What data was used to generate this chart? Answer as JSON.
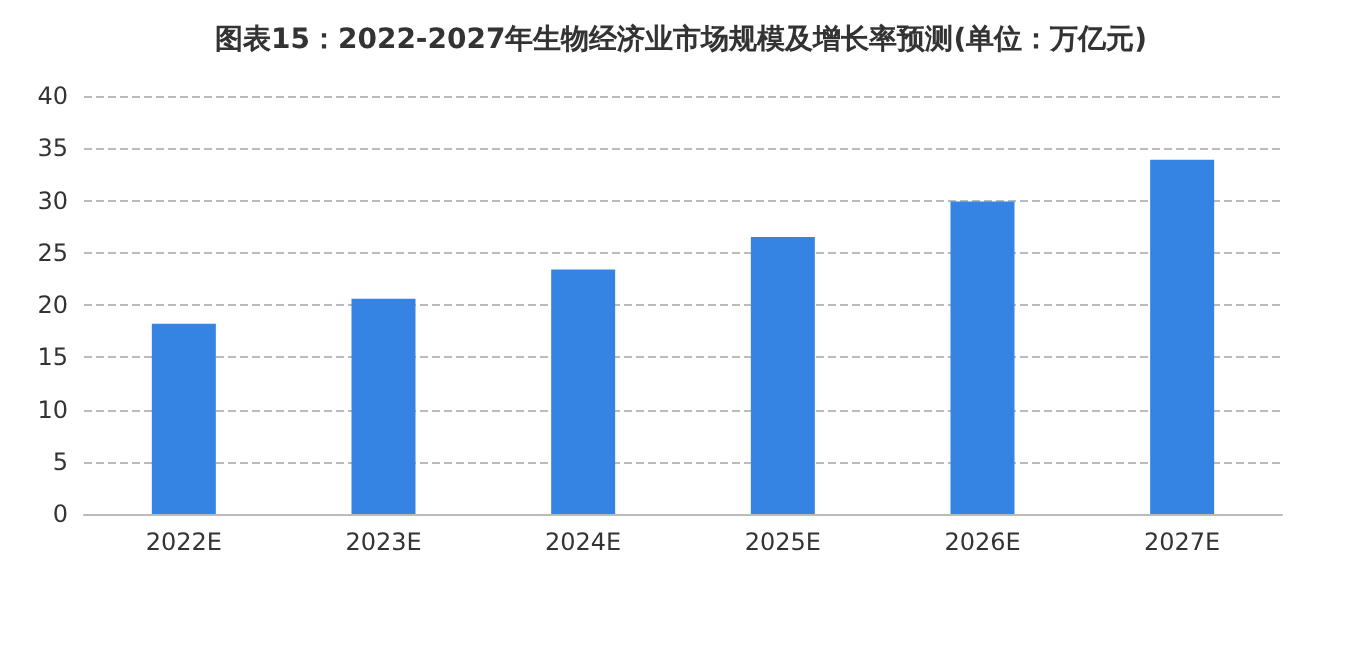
{
  "chart_data": {
    "type": "bar",
    "title": "图表15：2022-2027年生物经济业市场规模及增长率预测(单位：万亿元)",
    "categories": [
      "2022E",
      "2023E",
      "2024E",
      "2025E",
      "2026E",
      "2027E"
    ],
    "values": [
      18.2,
      20.6,
      23.4,
      26.5,
      29.9,
      33.9
    ],
    "color": "#3584e4",
    "ylim": [
      0,
      40
    ],
    "yticks": [
      0,
      5,
      10,
      15,
      20,
      25,
      30,
      35,
      40
    ],
    "grid": "y"
  }
}
